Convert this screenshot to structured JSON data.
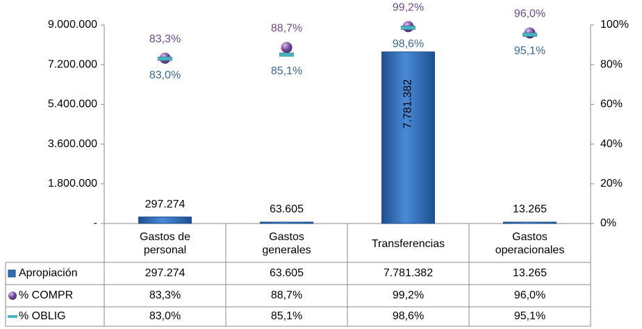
{
  "chart_data": {
    "type": "bar",
    "categories": [
      "Gastos de personal",
      "Gastos generales",
      "Transferencias",
      "Gastos operacionales"
    ],
    "series": [
      {
        "name": "Apropiación",
        "color": "#2f6db5",
        "values": [
          297274,
          63605,
          7781382,
          13265
        ],
        "value_labels": [
          "297.274",
          "63.605",
          "7.781.382",
          "13.265"
        ]
      },
      {
        "name": "% COMPR",
        "color": "#7a4fa3",
        "axis": "y2",
        "values": [
          83.3,
          88.7,
          99.2,
          96.0
        ],
        "value_labels": [
          "83,3%",
          "88,7%",
          "99,2%",
          "96,0%"
        ]
      },
      {
        "name": "% OBLIG",
        "color": "#49b4c6",
        "axis": "y2",
        "values": [
          83.0,
          85.1,
          98.6,
          95.1
        ],
        "value_labels": [
          "83,0%",
          "85,1%",
          "98,6%",
          "95,1%"
        ]
      }
    ],
    "ylim": [
      0,
      9000000
    ],
    "yticks": [
      {
        "value": 0,
        "label": "-"
      },
      {
        "value": 1800000,
        "label": "1.800.000"
      },
      {
        "value": 3600000,
        "label": "3.600.000"
      },
      {
        "value": 5400000,
        "label": "5.400.000"
      },
      {
        "value": 7200000,
        "label": "7.200.000"
      },
      {
        "value": 9000000,
        "label": "9.000.000"
      }
    ],
    "y2lim": [
      0,
      100
    ],
    "y2ticks": [
      {
        "value": 0,
        "label": "0%"
      },
      {
        "value": 20,
        "label": "20%"
      },
      {
        "value": 40,
        "label": "40%"
      },
      {
        "value": 60,
        "label": "60%"
      },
      {
        "value": 80,
        "label": "80%"
      },
      {
        "value": 100,
        "label": "100%"
      }
    ]
  }
}
